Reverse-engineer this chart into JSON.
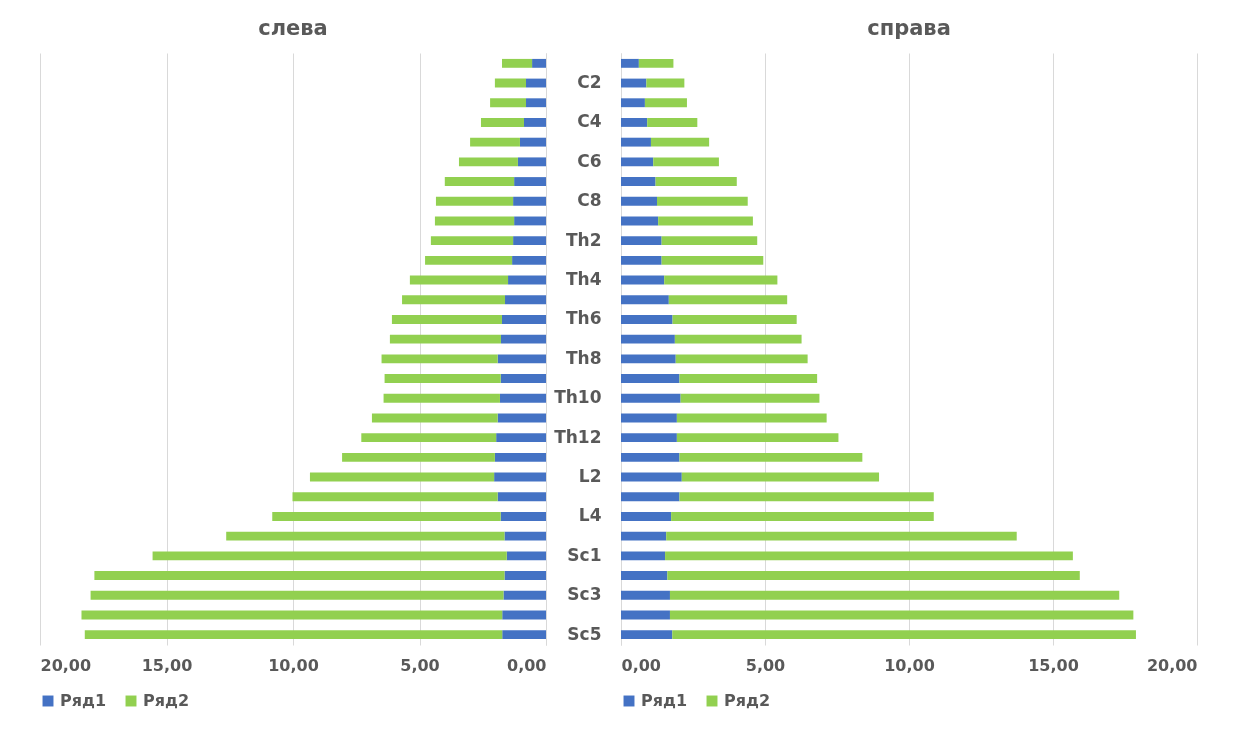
{
  "chart_data": [
    {
      "type": "bar",
      "title": "слева",
      "orientation": "horizontal",
      "stacked": true,
      "grid": "x",
      "legend": "bottom",
      "categories": [
        null,
        "C2",
        null,
        "C4",
        null,
        "C6",
        null,
        "C8",
        null,
        "Th2",
        null,
        "Th4",
        null,
        "Th6",
        null,
        "Th8",
        null,
        "Th10",
        null,
        "Th12",
        null,
        "L2",
        null,
        "L4",
        null,
        "Sc1",
        null,
        "Sc3",
        null,
        "Sc5"
      ],
      "xlim": [
        20,
        0
      ],
      "xticks": [
        {
          "value": 20,
          "label": "20,00"
        },
        {
          "value": 15,
          "label": "15,00"
        },
        {
          "value": 10,
          "label": "10,00"
        },
        {
          "value": 5,
          "label": "5,00"
        },
        {
          "value": 0,
          "label": "0,00"
        }
      ],
      "series": [
        {
          "name": "Ряд1",
          "color": "#4472c4",
          "values": [
            0.55,
            0.79,
            0.79,
            0.87,
            1.03,
            1.11,
            1.26,
            1.3,
            1.26,
            1.3,
            1.34,
            1.5,
            1.62,
            1.74,
            1.78,
            1.91,
            1.79,
            1.82,
            1.91,
            1.97,
            2.02,
            2.05,
            1.91,
            1.79,
            1.64,
            1.55,
            1.64,
            1.68,
            1.73,
            1.73
          ]
        },
        {
          "name": "Ряд2",
          "color": "#92d050",
          "values": [
            1.19,
            1.23,
            1.42,
            1.7,
            1.97,
            2.33,
            2.74,
            3.05,
            3.13,
            3.25,
            3.44,
            3.88,
            4.07,
            4.35,
            4.39,
            4.59,
            4.59,
            4.6,
            4.97,
            5.33,
            6.04,
            7.28,
            8.11,
            9.03,
            11.0,
            14.0,
            16.21,
            16.32,
            16.63,
            16.5
          ]
        }
      ]
    },
    {
      "type": "bar",
      "title": "справа",
      "orientation": "horizontal",
      "stacked": true,
      "grid": "x",
      "legend": "bottom",
      "tick_labels": "x",
      "xlim": [
        0,
        20
      ],
      "xticks": [
        {
          "value": 0,
          "label": "0,00"
        },
        {
          "value": 5,
          "label": "5,00"
        },
        {
          "value": 10,
          "label": "10,00"
        },
        {
          "value": 15,
          "label": "15,00"
        },
        {
          "value": 20,
          "label": "20,00"
        }
      ],
      "series": [
        {
          "name": "Ряд1",
          "color": "#4472c4",
          "values": [
            0.62,
            0.88,
            0.83,
            0.91,
            1.04,
            1.12,
            1.2,
            1.25,
            1.29,
            1.41,
            1.41,
            1.5,
            1.66,
            1.79,
            1.87,
            1.9,
            2.03,
            2.07,
            1.94,
            1.94,
            2.03,
            2.11,
            2.03,
            1.74,
            1.57,
            1.53,
            1.61,
            1.7,
            1.7,
            1.78
          ]
        },
        {
          "name": "Ряд2",
          "color": "#92d050",
          "values": [
            1.2,
            1.32,
            1.46,
            1.74,
            2.02,
            2.28,
            2.82,
            3.15,
            3.29,
            3.32,
            3.53,
            3.93,
            4.11,
            4.31,
            4.4,
            4.58,
            4.78,
            4.82,
            5.2,
            5.61,
            6.35,
            6.85,
            8.83,
            9.12,
            12.17,
            14.16,
            14.32,
            15.6,
            16.09,
            16.1
          ]
        }
      ]
    }
  ]
}
